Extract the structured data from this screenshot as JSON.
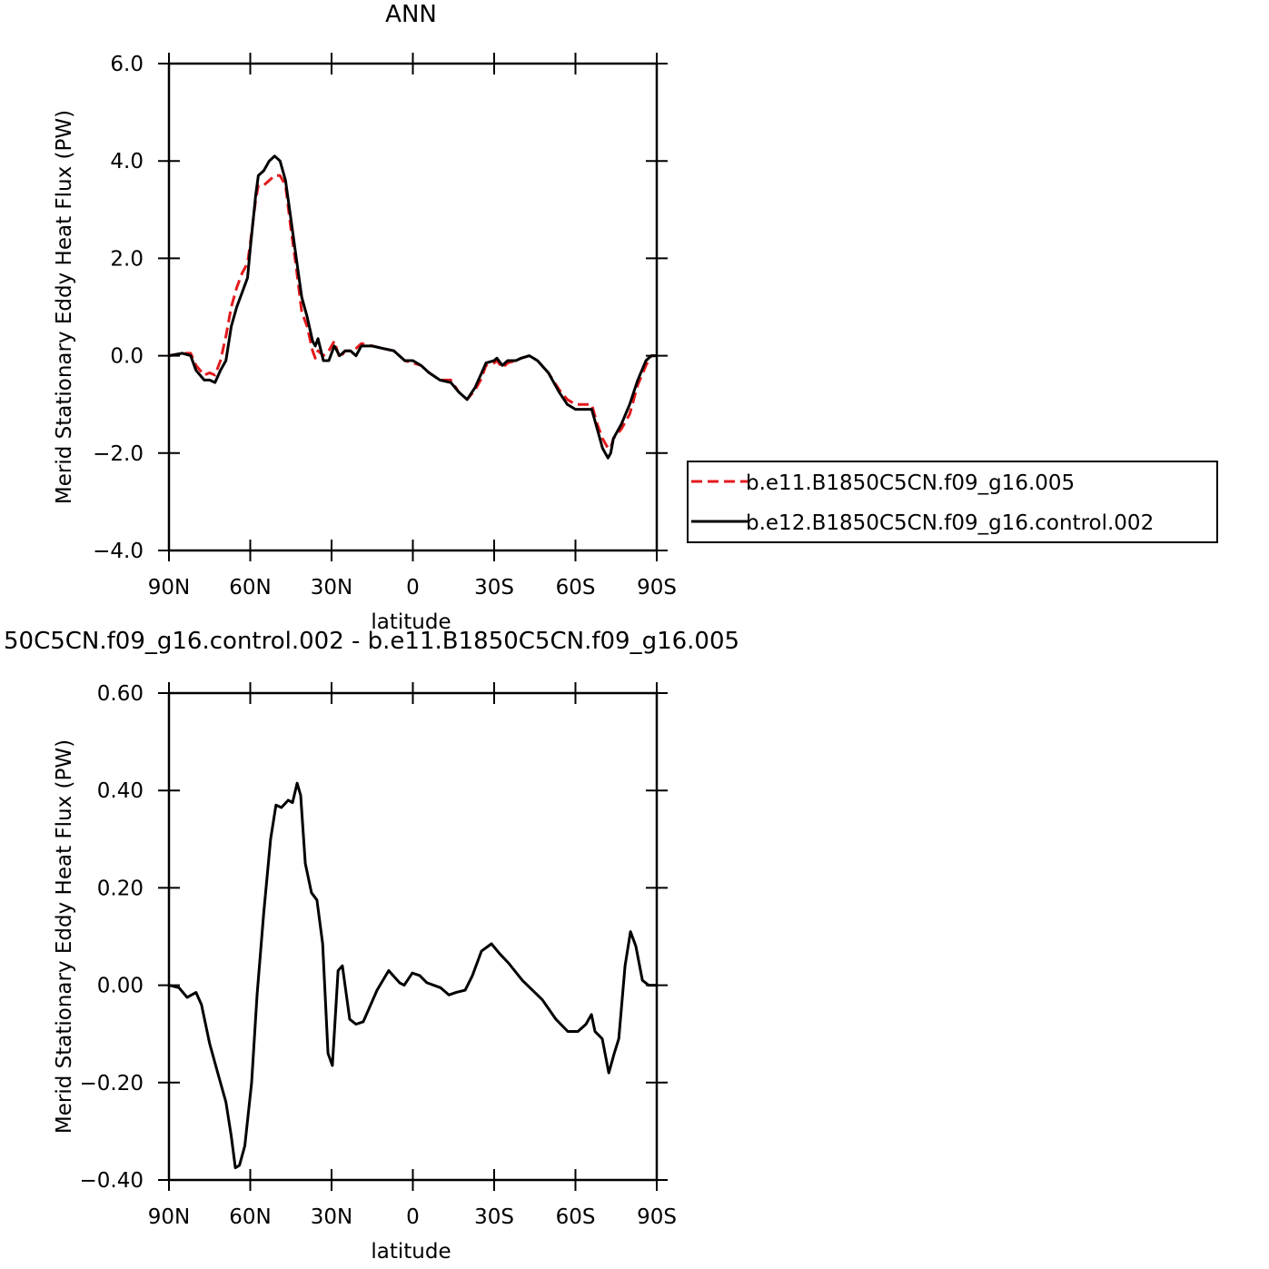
{
  "chart_data": [
    {
      "type": "line",
      "title": "ANN",
      "xlabel": "latitude",
      "ylabel": "Merid Stationary Eddy Heat Flux (PW)",
      "x": [
        90,
        85,
        82,
        80,
        77,
        75,
        73,
        71,
        69,
        67,
        65,
        63,
        61,
        60,
        58,
        57,
        55,
        53,
        51,
        49,
        47,
        45,
        43,
        41,
        39,
        37,
        36,
        35,
        33,
        31,
        29,
        27,
        25,
        23,
        21,
        19,
        15,
        11,
        7,
        3,
        0,
        -3,
        -6,
        -10,
        -14,
        -17,
        -20,
        -23,
        -25,
        -27,
        -30,
        -31,
        -33,
        -35,
        -38,
        -40,
        -43,
        -46,
        -50,
        -54,
        -57,
        -60,
        -63,
        -66,
        -68,
        -70,
        -72,
        -73,
        -74,
        -77,
        -80,
        -83,
        -86,
        -88,
        -90
      ],
      "series": [
        {
          "name": "b.e11.B1850C5CN.f09_g16.005",
          "color": "#e31a1c",
          "style": "dashed",
          "values": [
            0,
            0.05,
            0.05,
            -0.2,
            -0.4,
            -0.35,
            -0.4,
            -0.1,
            0.4,
            1.0,
            1.4,
            1.7,
            1.9,
            2.3,
            3.2,
            3.5,
            3.5,
            3.6,
            3.7,
            3.7,
            3.5,
            2.6,
            1.8,
            0.9,
            0.6,
            0.1,
            -0.05,
            0.1,
            0.0,
            0.1,
            0.3,
            -0.05,
            0.1,
            0.1,
            0.15,
            0.25,
            0.2,
            0.15,
            0.1,
            -0.1,
            -0.15,
            -0.2,
            -0.35,
            -0.5,
            -0.5,
            -0.75,
            -0.9,
            -0.7,
            -0.5,
            -0.2,
            -0.15,
            -0.1,
            -0.25,
            -0.15,
            -0.1,
            -0.05,
            0.0,
            -0.1,
            -0.35,
            -0.7,
            -0.9,
            -1.0,
            -1.0,
            -1.0,
            -1.4,
            -1.7,
            -1.9,
            -1.9,
            -1.7,
            -1.5,
            -1.2,
            -0.6,
            -0.2,
            0.0,
            0.0
          ]
        },
        {
          "name": "b.e12.B1850C5CN.f09_g16.control.002",
          "color": "#000000",
          "style": "solid",
          "values": [
            0,
            0.05,
            0.0,
            -0.3,
            -0.5,
            -0.5,
            -0.55,
            -0.3,
            -0.1,
            0.6,
            1.0,
            1.3,
            1.6,
            2.2,
            3.3,
            3.7,
            3.8,
            4.0,
            4.1,
            4.0,
            3.6,
            2.8,
            2.0,
            1.2,
            0.8,
            0.3,
            0.2,
            0.35,
            -0.1,
            -0.1,
            0.2,
            0.0,
            0.1,
            0.1,
            0.0,
            0.2,
            0.2,
            0.15,
            0.1,
            -0.1,
            -0.1,
            -0.2,
            -0.35,
            -0.5,
            -0.55,
            -0.75,
            -0.9,
            -0.65,
            -0.4,
            -0.15,
            -0.1,
            -0.05,
            -0.2,
            -0.1,
            -0.1,
            -0.05,
            0.0,
            -0.1,
            -0.35,
            -0.75,
            -1.0,
            -1.1,
            -1.1,
            -1.1,
            -1.5,
            -1.9,
            -2.1,
            -2.0,
            -1.7,
            -1.4,
            -1.0,
            -0.5,
            -0.1,
            0.0,
            0.0
          ]
        }
      ],
      "xlim": [
        90,
        -90
      ],
      "xticks": [
        {
          "value": 90,
          "label": "90N"
        },
        {
          "value": 60,
          "label": "60N"
        },
        {
          "value": 30,
          "label": "30N"
        },
        0,
        {
          "value": -30,
          "label": "30S"
        },
        {
          "value": -60,
          "label": "60S"
        },
        {
          "value": -90,
          "label": "90S"
        }
      ],
      "ylim": [
        -4,
        6
      ],
      "yticks": [
        {
          "value": -4,
          "label": "−4.0"
        },
        {
          "value": -2,
          "label": "−2.0"
        },
        {
          "value": 0,
          "label": "0.0"
        },
        {
          "value": 2,
          "label": "2.0"
        },
        {
          "value": 4,
          "label": "4.0"
        },
        {
          "value": 6,
          "label": "6.0"
        }
      ],
      "legend": "right"
    },
    {
      "type": "line",
      "title": "50C5CN.f09_g16.control.002 - b.e11.B1850C5CN.f09_g16.005",
      "xlabel": "latitude",
      "ylabel": "Merid Stationary Eddy Heat Flux (PW)",
      "x": [
        90,
        86.3,
        83.3,
        80,
        78,
        75,
        72,
        69,
        67,
        65.5,
        64,
        62,
        59.5,
        57.5,
        55,
        52.5,
        50.5,
        48.5,
        46,
        44.4,
        42.7,
        41.4,
        39.7,
        37.4,
        35.4,
        33.3,
        31.3,
        29.7,
        27.6,
        26,
        23.3,
        21,
        18.3,
        13.2,
        8.9,
        4.9,
        3.2,
        0.2,
        -2.5,
        -5.2,
        -10.2,
        -13.3,
        -15.9,
        -19.3,
        -22,
        -25.3,
        -29,
        -32,
        -35.4,
        -40.4,
        -47.8,
        -52.8,
        -57.2,
        -60.9,
        -63.9,
        -65.9,
        -67.2,
        -69.9,
        -72.3,
        -74.3,
        -76,
        -78.3,
        -80.3,
        -82.3,
        -84.7,
        -87,
        -90
      ],
      "values": [
        0,
        -0.005,
        -0.025,
        -0.015,
        -0.04,
        -0.12,
        -0.18,
        -0.24,
        -0.31,
        -0.375,
        -0.37,
        -0.33,
        -0.2,
        -0.02,
        0.15,
        0.3,
        0.37,
        0.365,
        0.38,
        0.375,
        0.415,
        0.39,
        0.25,
        0.19,
        0.175,
        0.085,
        -0.14,
        -0.165,
        0.03,
        0.04,
        -0.07,
        -0.08,
        -0.075,
        -0.01,
        0.03,
        0.005,
        0.0,
        0.025,
        0.02,
        0.005,
        -0.005,
        -0.02,
        -0.015,
        -0.01,
        0.02,
        0.07,
        0.085,
        0.065,
        0.045,
        0.01,
        -0.03,
        -0.07,
        -0.095,
        -0.095,
        -0.08,
        -0.06,
        -0.095,
        -0.11,
        -0.18,
        -0.14,
        -0.11,
        0.04,
        0.11,
        0.08,
        0.01,
        0.0,
        0.0
      ],
      "color": "#000000",
      "xlim": [
        90,
        -90
      ],
      "xticks": [
        {
          "value": 90,
          "label": "90N"
        },
        {
          "value": 60,
          "label": "60N"
        },
        {
          "value": 30,
          "label": "30N"
        },
        0,
        {
          "value": -30,
          "label": "30S"
        },
        {
          "value": -60,
          "label": "60S"
        },
        {
          "value": -90,
          "label": "90S"
        }
      ],
      "ylim": [
        -0.4,
        0.6
      ],
      "yticks": [
        {
          "value": -0.4,
          "label": "−0.40"
        },
        {
          "value": -0.2,
          "label": "−0.20"
        },
        {
          "value": 0,
          "label": "0.00"
        },
        {
          "value": 0.2,
          "label": "0.20"
        },
        {
          "value": 0.4,
          "label": "0.40"
        },
        {
          "value": 0.6,
          "label": "0.60"
        }
      ]
    }
  ]
}
